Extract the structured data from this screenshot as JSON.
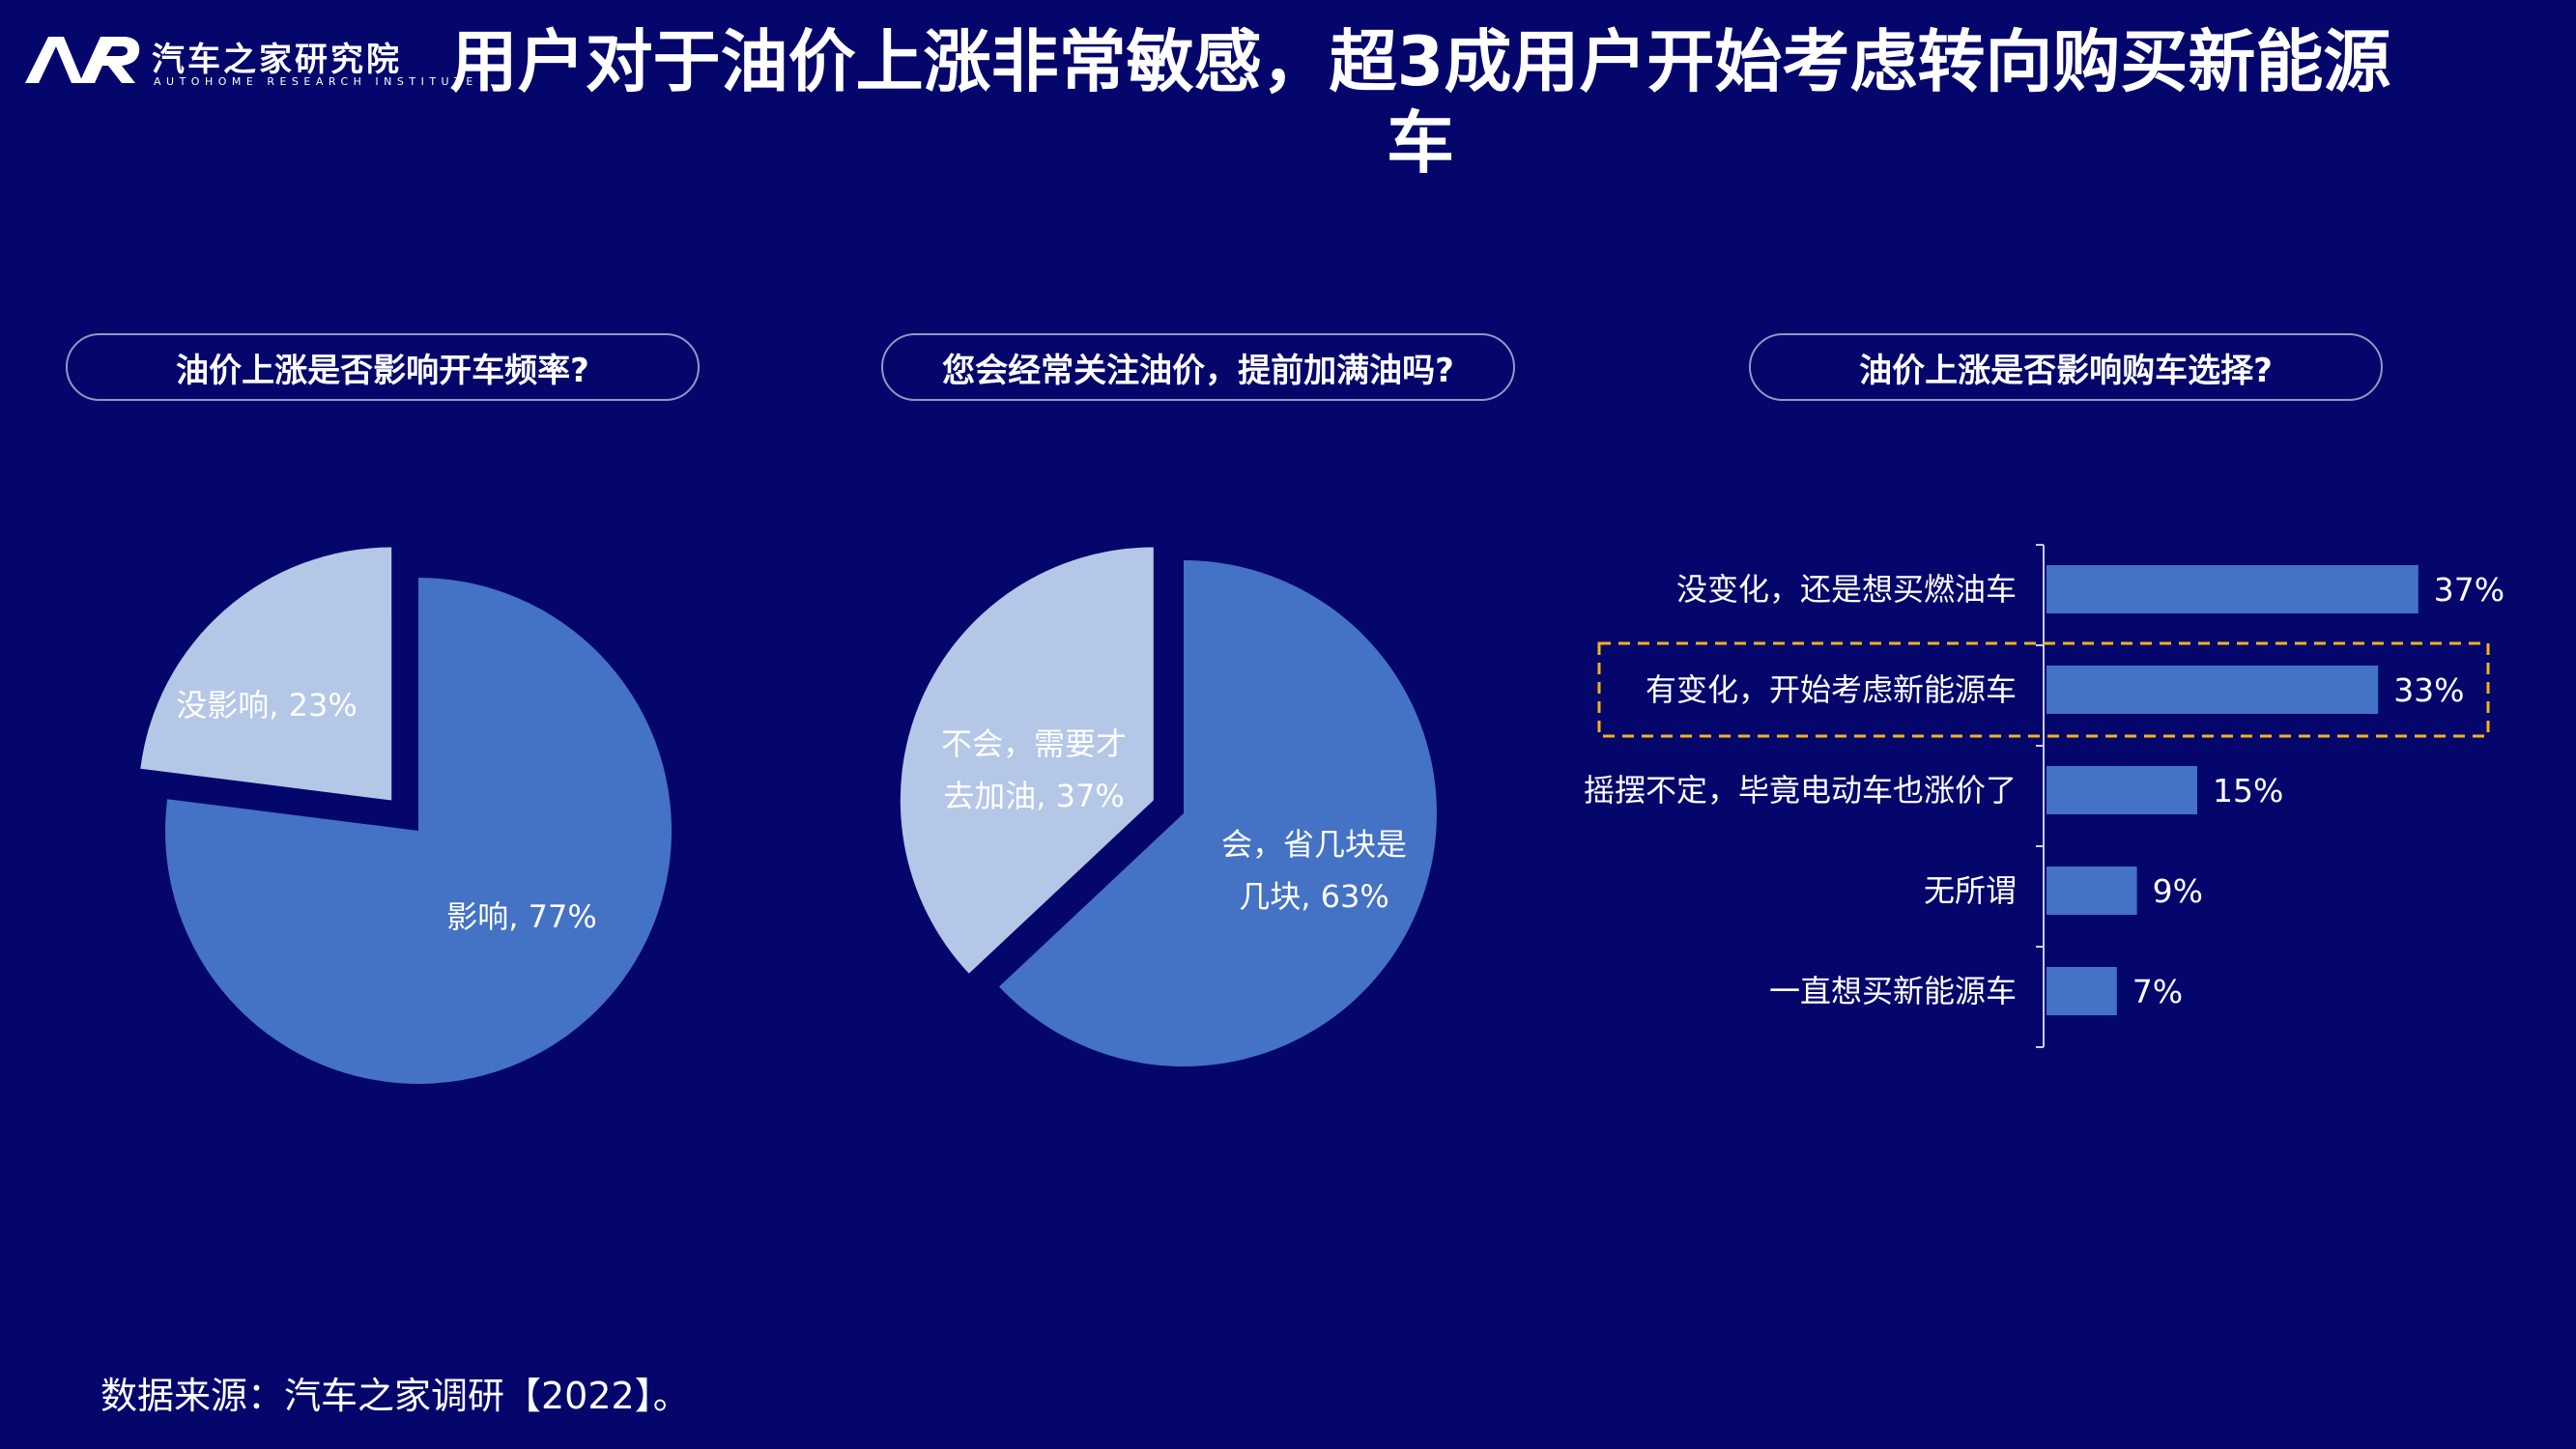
{
  "logo": {
    "mark_text": "AR",
    "name_cn": "汽车之家研究院",
    "name_en": "AUTOHOME RESEARCH INSTITUTE"
  },
  "title": "用户对于油价上涨非常敏感，超3成用户开始考虑转向购买新能源车",
  "questions": [
    "油价上涨是否影响开车频率?",
    "您会经常关注油价，提前加满油吗?",
    "油价上涨是否影响购车选择?"
  ],
  "source": "数据来源：汽车之家调研【2022】。",
  "colors": {
    "background": "#05066c",
    "slice_primary": "#4472c4",
    "slice_secondary": "#b4c7e7",
    "bar": "#4472c4",
    "highlight_border": "#f0b41e"
  },
  "chart_data": [
    {
      "type": "pie",
      "title": "油价上涨是否影响开车频率?",
      "slices": [
        {
          "label": "影响, 77%",
          "value": 77
        },
        {
          "label": "没影响, 23%",
          "value": 23
        }
      ]
    },
    {
      "type": "pie",
      "title": "您会经常关注油价，提前加满油吗?",
      "slices": [
        {
          "label": "会，省几块是几块, 63%",
          "value": 63
        },
        {
          "label": "不会，需要才去加油, 37%",
          "value": 37
        }
      ]
    },
    {
      "type": "bar",
      "orientation": "horizontal",
      "title": "油价上涨是否影响购车选择?",
      "categories": [
        "没变化，还是想买燃油车",
        "有变化，开始考虑新能源车",
        "摇摆不定，毕竟电动车也涨价了",
        "无所谓",
        "一直想买新能源车"
      ],
      "values": [
        37,
        33,
        15,
        9,
        7
      ],
      "value_labels": [
        "37%",
        "33%",
        "15%",
        "9%",
        "7%"
      ],
      "highlighted": "有变化，开始考虑新能源车"
    }
  ]
}
